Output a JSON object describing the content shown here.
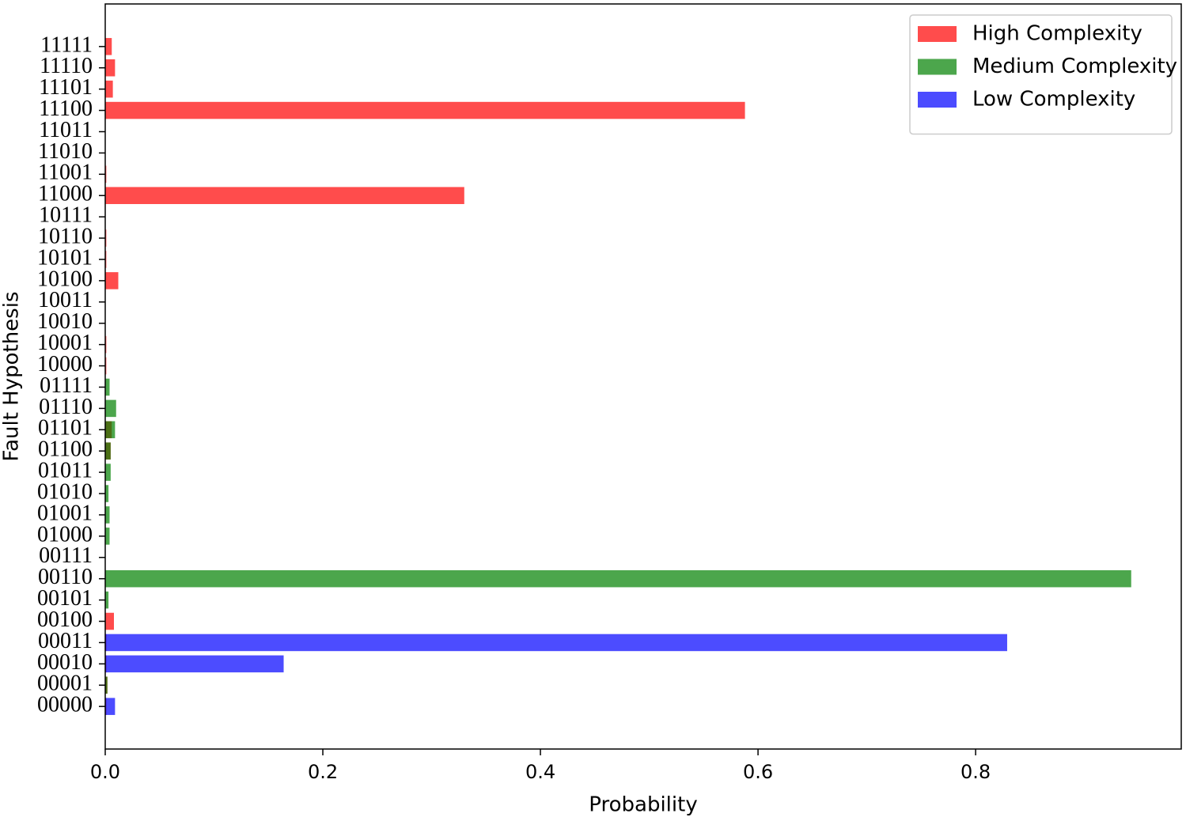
{
  "chart_data": {
    "type": "barh",
    "categories": [
      "00000",
      "00001",
      "00010",
      "00011",
      "00100",
      "00101",
      "00110",
      "00111",
      "01000",
      "01001",
      "01010",
      "01011",
      "01100",
      "01101",
      "01110",
      "01111",
      "10000",
      "10001",
      "10010",
      "10011",
      "10100",
      "10101",
      "10110",
      "10111",
      "11000",
      "11001",
      "11010",
      "11011",
      "11100",
      "11101",
      "11110",
      "11111"
    ],
    "series": [
      {
        "name": "High Complexity",
        "color": "#ff0000",
        "values": [
          0.001,
          0.002,
          0.001,
          0.001,
          0.008,
          0,
          0,
          0,
          0,
          0,
          0,
          0,
          0.005,
          0.006,
          0,
          0,
          0.001,
          0.001,
          0,
          0,
          0.012,
          0.001,
          0.001,
          0,
          0.33,
          0.001,
          0,
          0,
          0.588,
          0.007,
          0.009,
          0.006
        ]
      },
      {
        "name": "Medium Complexity",
        "color": "#008000",
        "values": [
          0,
          0.002,
          0,
          0,
          0,
          0.003,
          0.943,
          0,
          0.004,
          0.004,
          0.003,
          0.005,
          0.005,
          0.009,
          0.01,
          0.004,
          0,
          0,
          0,
          0,
          0,
          0,
          0,
          0,
          0,
          0,
          0,
          0,
          0,
          0,
          0,
          0
        ]
      },
      {
        "name": "Low Complexity",
        "color": "#0000ff",
        "values": [
          0.009,
          0,
          0.164,
          0.829,
          0,
          0,
          0,
          0,
          0,
          0,
          0,
          0,
          0,
          0,
          0,
          0,
          0,
          0,
          0,
          0,
          0,
          0,
          0,
          0,
          0,
          0,
          0,
          0,
          0,
          0,
          0,
          0
        ]
      }
    ],
    "xlabel": "Probability",
    "ylabel": "Fault Hypothesis",
    "xlim": [
      0,
      0.989
    ],
    "xticks": [
      {
        "value": 0,
        "label": "0.0"
      },
      {
        "value": 0.2,
        "label": "0.2"
      },
      {
        "value": 0.4,
        "label": "0.4"
      },
      {
        "value": 0.6,
        "label": "0.6"
      },
      {
        "value": 0.8,
        "label": "0.8"
      }
    ],
    "opacity": 0.7,
    "legend": "upper right"
  }
}
